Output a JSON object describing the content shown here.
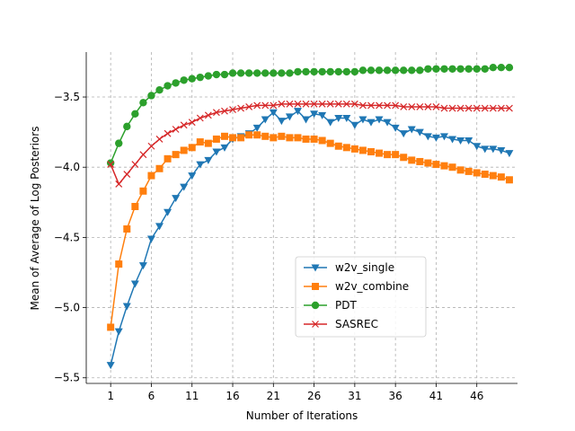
{
  "chart_data": {
    "type": "line",
    "title": "",
    "xlabel": "Number of Iterations",
    "ylabel": "Mean of Average of Log Posteriors",
    "xlim": [
      -2,
      51
    ],
    "ylim": [
      -5.54,
      -3.18
    ],
    "xticks": [
      1,
      6,
      11,
      16,
      21,
      26,
      31,
      36,
      41,
      46
    ],
    "yticks": [
      -5.5,
      -5.0,
      -4.5,
      -4.0,
      -3.5
    ],
    "ytick_labels": [
      "−5.5",
      "−5.0",
      "−4.5",
      "−4.0",
      "−3.5"
    ],
    "grid": true,
    "legend_position": "lower-center",
    "x": [
      1,
      2,
      3,
      4,
      5,
      6,
      7,
      8,
      9,
      10,
      11,
      12,
      13,
      14,
      15,
      16,
      17,
      18,
      19,
      20,
      21,
      22,
      23,
      24,
      25,
      26,
      27,
      28,
      29,
      30,
      31,
      32,
      33,
      34,
      35,
      36,
      37,
      38,
      39,
      40,
      41,
      42,
      43,
      44,
      45,
      46,
      47,
      48,
      49,
      50
    ],
    "series": [
      {
        "name": "w2v_single",
        "color": "#1f77b4",
        "marker": "triangle-down",
        "values": [
          -5.41,
          -5.17,
          -4.99,
          -4.83,
          -4.7,
          -4.51,
          -4.42,
          -4.32,
          -4.22,
          -4.14,
          -4.06,
          -3.98,
          -3.95,
          -3.89,
          -3.86,
          -3.8,
          -3.78,
          -3.76,
          -3.72,
          -3.66,
          -3.61,
          -3.67,
          -3.64,
          -3.6,
          -3.66,
          -3.62,
          -3.63,
          -3.68,
          -3.65,
          -3.65,
          -3.7,
          -3.66,
          -3.68,
          -3.66,
          -3.68,
          -3.72,
          -3.76,
          -3.73,
          -3.75,
          -3.78,
          -3.79,
          -3.78,
          -3.8,
          -3.81,
          -3.81,
          -3.85,
          -3.87,
          -3.87,
          -3.88,
          -3.9
        ]
      },
      {
        "name": "w2v_combine",
        "color": "#ff7f0e",
        "marker": "square",
        "values": [
          -5.14,
          -4.69,
          -4.44,
          -4.28,
          -4.17,
          -4.06,
          -4.01,
          -3.94,
          -3.91,
          -3.88,
          -3.86,
          -3.82,
          -3.83,
          -3.8,
          -3.78,
          -3.79,
          -3.79,
          -3.77,
          -3.77,
          -3.78,
          -3.79,
          -3.78,
          -3.79,
          -3.79,
          -3.8,
          -3.8,
          -3.81,
          -3.83,
          -3.85,
          -3.86,
          -3.87,
          -3.88,
          -3.89,
          -3.9,
          -3.91,
          -3.91,
          -3.93,
          -3.95,
          -3.96,
          -3.97,
          -3.98,
          -3.99,
          -4.0,
          -4.02,
          -4.03,
          -4.04,
          -4.05,
          -4.06,
          -4.07,
          -4.09
        ]
      },
      {
        "name": "PDT",
        "color": "#2ca02c",
        "marker": "circle",
        "values": [
          -3.97,
          -3.83,
          -3.71,
          -3.62,
          -3.54,
          -3.49,
          -3.45,
          -3.42,
          -3.4,
          -3.38,
          -3.37,
          -3.36,
          -3.35,
          -3.34,
          -3.34,
          -3.33,
          -3.33,
          -3.33,
          -3.33,
          -3.33,
          -3.33,
          -3.33,
          -3.33,
          -3.32,
          -3.32,
          -3.32,
          -3.32,
          -3.32,
          -3.32,
          -3.32,
          -3.32,
          -3.31,
          -3.31,
          -3.31,
          -3.31,
          -3.31,
          -3.31,
          -3.31,
          -3.31,
          -3.3,
          -3.3,
          -3.3,
          -3.3,
          -3.3,
          -3.3,
          -3.3,
          -3.3,
          -3.29,
          -3.29,
          -3.29
        ]
      },
      {
        "name": "SASREC",
        "color": "#d62728",
        "marker": "x",
        "values": [
          -3.98,
          -4.12,
          -4.05,
          -3.98,
          -3.91,
          -3.85,
          -3.8,
          -3.76,
          -3.73,
          -3.7,
          -3.68,
          -3.65,
          -3.63,
          -3.61,
          -3.6,
          -3.59,
          -3.58,
          -3.57,
          -3.56,
          -3.56,
          -3.56,
          -3.55,
          -3.55,
          -3.55,
          -3.55,
          -3.55,
          -3.55,
          -3.55,
          -3.55,
          -3.55,
          -3.55,
          -3.56,
          -3.56,
          -3.56,
          -3.56,
          -3.56,
          -3.57,
          -3.57,
          -3.57,
          -3.57,
          -3.57,
          -3.58,
          -3.58,
          -3.58,
          -3.58,
          -3.58,
          -3.58,
          -3.58,
          -3.58,
          -3.58
        ]
      }
    ]
  }
}
